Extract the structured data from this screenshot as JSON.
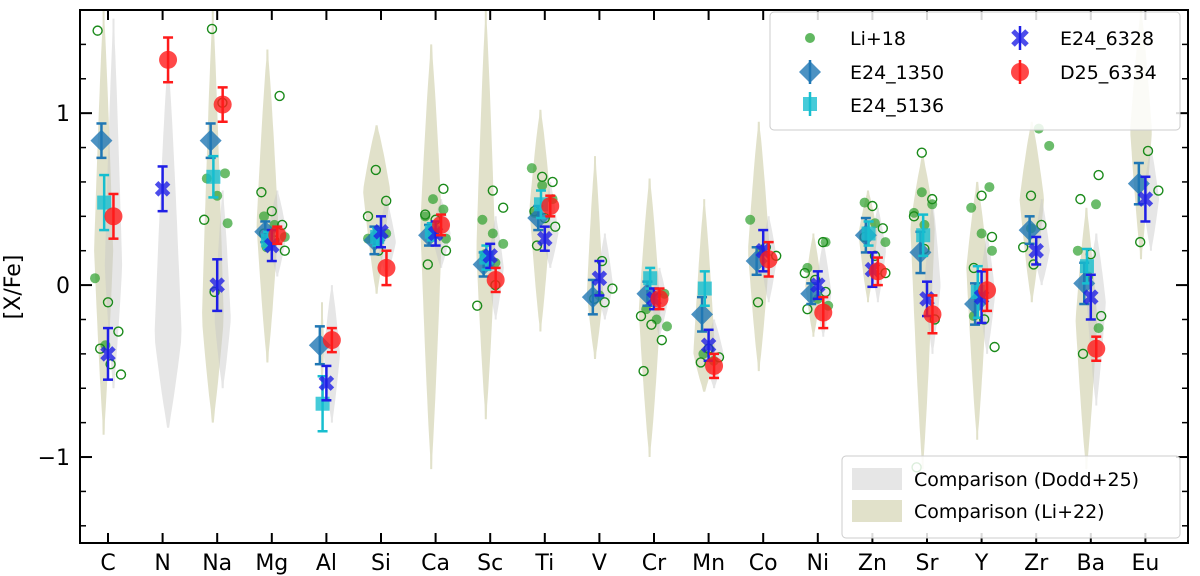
{
  "chart_data": {
    "type": "scatter",
    "ylabel": "[X/Fe]",
    "xlabel": "",
    "ylim": [
      -1.5,
      1.6
    ],
    "yticks": [
      -1,
      0,
      1
    ],
    "ytick_labels": [
      "−1",
      "0",
      "1"
    ],
    "categories": [
      "C",
      "N",
      "Na",
      "Mg",
      "Al",
      "Si",
      "Ca",
      "Sc",
      "Ti",
      "V",
      "Cr",
      "Mn",
      "Co",
      "Ni",
      "Zn",
      "Sr",
      "Y",
      "Zr",
      "Ba",
      "Eu"
    ],
    "legend": {
      "placement": "top-right",
      "entries": [
        "Li+18",
        "E24_1350",
        "E24_5136",
        "E24_6328",
        "D25_6334"
      ]
    },
    "comparison_legend": {
      "placement": "bottom-right",
      "entries": [
        "Comparison (Dodd+25)",
        "Comparison (Li+22)"
      ]
    },
    "colors": {
      "li18": "#2ca02c",
      "e24_1350": "#1f77b4",
      "e24_5136": "#17becf",
      "e24_6328": "#1f1fe6",
      "d25_6334": "#ff1a1a",
      "dodd": "#c8c8c8",
      "li22": "#bcbd8a"
    },
    "violins_dodd": [
      {
        "el": "C",
        "y": [
          -0.6,
          1.55
        ],
        "c": 0.1,
        "w": 0.32
      },
      {
        "el": "N",
        "y": [
          -0.83,
          1.3
        ],
        "c": -0.3,
        "w": 0.5
      },
      {
        "el": "Na",
        "y": [
          -0.6,
          0.55
        ],
        "c": -0.2,
        "w": 0.3
      },
      {
        "el": "Mg",
        "y": [
          0.05,
          0.55
        ],
        "c": 0.3,
        "w": 0.35
      },
      {
        "el": "Al",
        "y": [
          -0.8,
          0.0
        ],
        "c": -0.4,
        "w": 0.3
      },
      {
        "el": "Si",
        "y": [
          0.05,
          0.5
        ],
        "c": 0.25,
        "w": 0.35
      },
      {
        "el": "Ca",
        "y": [
          0.1,
          0.5
        ],
        "c": 0.3,
        "w": 0.35
      },
      {
        "el": "Sc",
        "y": [
          -0.2,
          0.4
        ],
        "c": 0.1,
        "w": 0.3
      },
      {
        "el": "Ti",
        "y": [
          0.1,
          0.6
        ],
        "c": 0.3,
        "w": 0.3
      },
      {
        "el": "V",
        "y": [
          -0.2,
          0.3
        ],
        "c": 0.0,
        "w": 0.3
      },
      {
        "el": "Cr",
        "y": [
          -0.3,
          0.1
        ],
        "c": -0.1,
        "w": 0.3
      },
      {
        "el": "Mn",
        "y": [
          -0.6,
          -0.2
        ],
        "c": -0.4,
        "w": 0.35
      },
      {
        "el": "Co",
        "y": [
          -0.1,
          0.4
        ],
        "c": 0.15,
        "w": 0.3
      },
      {
        "el": "Ni",
        "y": [
          -0.3,
          0.25
        ],
        "c": -0.05,
        "w": 0.3
      },
      {
        "el": "Zn",
        "y": [
          -0.1,
          0.45
        ],
        "c": 0.2,
        "w": 0.3
      },
      {
        "el": "Sr",
        "y": [
          -0.4,
          0.5
        ],
        "c": 0.0,
        "w": 0.3
      },
      {
        "el": "Y",
        "y": [
          -0.4,
          0.3
        ],
        "c": -0.05,
        "w": 0.3
      },
      {
        "el": "Zr",
        "y": [
          0.0,
          0.5
        ],
        "c": 0.2,
        "w": 0.3
      },
      {
        "el": "Ba",
        "y": [
          -0.7,
          0.3
        ],
        "c": -0.1,
        "w": 0.35
      },
      {
        "el": "Eu",
        "y": [
          0.2,
          0.8
        ],
        "c": 0.5,
        "w": 0.3
      }
    ],
    "violins_li22": [
      {
        "el": "C",
        "y": [
          -0.87,
          1.6
        ],
        "c": 0.2,
        "w": 0.35
      },
      {
        "el": "N",
        "y": [
          0,
          0
        ],
        "c": 0,
        "w": 0
      },
      {
        "el": "Na",
        "y": [
          -0.8,
          1.6
        ],
        "c": -0.2,
        "w": 0.4
      },
      {
        "el": "Mg",
        "y": [
          -0.45,
          1.37
        ],
        "c": 0.35,
        "w": 0.4
      },
      {
        "el": "Al",
        "y": [
          -0.65,
          -0.1
        ],
        "c": -0.35,
        "w": 0.08
      },
      {
        "el": "Si",
        "y": [
          -0.05,
          0.93
        ],
        "c": 0.55,
        "w": 0.5
      },
      {
        "el": "Ca",
        "y": [
          -1.07,
          1.4
        ],
        "c": 0.35,
        "w": 0.4
      },
      {
        "el": "Sc",
        "y": [
          -0.78,
          1.6
        ],
        "c": 0.2,
        "w": 0.35
      },
      {
        "el": "Ti",
        "y": [
          -0.27,
          1.02
        ],
        "c": 0.45,
        "w": 0.4
      },
      {
        "el": "V",
        "y": [
          -0.43,
          0.75
        ],
        "c": -0.05,
        "w": 0.3
      },
      {
        "el": "Cr",
        "y": [
          -1.0,
          0.62
        ],
        "c": -0.15,
        "w": 0.4
      },
      {
        "el": "Mn",
        "y": [
          -0.62,
          0.5
        ],
        "c": -0.4,
        "w": 0.4
      },
      {
        "el": "Co",
        "y": [
          -0.5,
          0.95
        ],
        "c": 0.2,
        "w": 0.4
      },
      {
        "el": "Ni",
        "y": [
          -0.3,
          0.3
        ],
        "c": 0.0,
        "w": 0.3
      },
      {
        "el": "Zn",
        "y": [
          -0.1,
          0.55
        ],
        "c": 0.3,
        "w": 0.35
      },
      {
        "el": "Sr",
        "y": [
          -1.07,
          0.75
        ],
        "c": 0.35,
        "w": 0.45
      },
      {
        "el": "Y",
        "y": [
          -0.9,
          0.6
        ],
        "c": 0.1,
        "w": 0.4
      },
      {
        "el": "Zr",
        "y": [
          -0.1,
          0.95
        ],
        "c": 0.5,
        "w": 0.45
      },
      {
        "el": "Ba",
        "y": [
          -1.07,
          0.45
        ],
        "c": -0.2,
        "w": 0.4
      },
      {
        "el": "Eu",
        "y": [
          0.15,
          1.6
        ],
        "c": 0.9,
        "w": 0.4
      }
    ],
    "li18_filled": [
      [
        "C",
        0.04
      ],
      [
        "C",
        -0.35
      ],
      [
        "Na",
        0.65
      ],
      [
        "Na",
        0.62
      ],
      [
        "Na",
        0.52
      ],
      [
        "Na",
        0.36
      ],
      [
        "Mg",
        0.4
      ],
      [
        "Mg",
        0.35
      ],
      [
        "Mg",
        0.28
      ],
      [
        "Mg",
        0.22
      ],
      [
        "Si",
        0.3
      ],
      [
        "Si",
        0.27
      ],
      [
        "Ca",
        0.5
      ],
      [
        "Ca",
        0.44
      ],
      [
        "Ca",
        0.4
      ],
      [
        "Ca",
        0.32
      ],
      [
        "Ca",
        0.27
      ],
      [
        "Sc",
        0.38
      ],
      [
        "Sc",
        0.3
      ],
      [
        "Sc",
        0.24
      ],
      [
        "Sc",
        0.18
      ],
      [
        "Sc",
        0.13
      ],
      [
        "Ti",
        0.68
      ],
      [
        "Ti",
        0.58
      ],
      [
        "Ti",
        0.5
      ],
      [
        "Ti",
        0.42
      ],
      [
        "V",
        -0.06
      ],
      [
        "Cr",
        -0.05
      ],
      [
        "Cr",
        -0.14
      ],
      [
        "Cr",
        -0.2
      ],
      [
        "Cr",
        -0.24
      ],
      [
        "Mn",
        -0.4
      ],
      [
        "Mn",
        -0.44
      ],
      [
        "Co",
        0.38
      ],
      [
        "Co",
        0.2
      ],
      [
        "Ni",
        0.25
      ],
      [
        "Ni",
        0.1
      ],
      [
        "Ni",
        -0.08
      ],
      [
        "Ni",
        -0.12
      ],
      [
        "Zn",
        0.48
      ],
      [
        "Zn",
        0.36
      ],
      [
        "Zn",
        0.25
      ],
      [
        "Sr",
        0.54
      ],
      [
        "Sr",
        0.47
      ],
      [
        "Sr",
        0.42
      ],
      [
        "Sr",
        0.35
      ],
      [
        "Y",
        0.57
      ],
      [
        "Y",
        0.45
      ],
      [
        "Y",
        0.3
      ],
      [
        "Y",
        0.2
      ],
      [
        "Y",
        -0.18
      ],
      [
        "Zr",
        0.91
      ],
      [
        "Zr",
        0.81
      ],
      [
        "Zr",
        0.33
      ],
      [
        "Ba",
        0.47
      ],
      [
        "Ba",
        0.2
      ],
      [
        "Ba",
        0.05
      ],
      [
        "Ba",
        -0.25
      ]
    ],
    "li18_open": [
      [
        "C",
        1.48
      ],
      [
        "C",
        -0.1
      ],
      [
        "C",
        -0.27
      ],
      [
        "C",
        -0.37
      ],
      [
        "C",
        -0.46
      ],
      [
        "C",
        -0.52
      ],
      [
        "Na",
        1.49
      ],
      [
        "Na",
        1.06
      ],
      [
        "Na",
        0.38
      ],
      [
        "Na",
        -0.04
      ],
      [
        "Mg",
        1.1
      ],
      [
        "Mg",
        0.54
      ],
      [
        "Mg",
        0.43
      ],
      [
        "Mg",
        0.35
      ],
      [
        "Mg",
        0.3
      ],
      [
        "Mg",
        0.26
      ],
      [
        "Mg",
        0.2
      ],
      [
        "Si",
        0.67
      ],
      [
        "Si",
        0.49
      ],
      [
        "Si",
        0.4
      ],
      [
        "Si",
        0.2
      ],
      [
        "Ca",
        0.56
      ],
      [
        "Ca",
        0.41
      ],
      [
        "Ca",
        0.38
      ],
      [
        "Ca",
        0.2
      ],
      [
        "Ca",
        0.12
      ],
      [
        "Sc",
        0.55
      ],
      [
        "Sc",
        0.45
      ],
      [
        "Sc",
        0.16
      ],
      [
        "Sc",
        0.0
      ],
      [
        "Sc",
        -0.12
      ],
      [
        "Ti",
        0.63
      ],
      [
        "Ti",
        0.6
      ],
      [
        "Ti",
        0.43
      ],
      [
        "Ti",
        0.39
      ],
      [
        "Ti",
        0.34
      ],
      [
        "Ti",
        0.23
      ],
      [
        "V",
        0.14
      ],
      [
        "V",
        -0.02
      ],
      [
        "V",
        -0.08
      ],
      [
        "V",
        -0.1
      ],
      [
        "Cr",
        -0.18
      ],
      [
        "Cr",
        -0.23
      ],
      [
        "Cr",
        -0.32
      ],
      [
        "Cr",
        -0.5
      ],
      [
        "Mn",
        -0.37
      ],
      [
        "Mn",
        -0.42
      ],
      [
        "Mn",
        -0.45
      ],
      [
        "Co",
        0.22
      ],
      [
        "Co",
        0.17
      ],
      [
        "Co",
        -0.1
      ],
      [
        "Ni",
        0.25
      ],
      [
        "Ni",
        0.07
      ],
      [
        "Ni",
        0.03
      ],
      [
        "Ni",
        -0.04
      ],
      [
        "Ni",
        -0.14
      ],
      [
        "Zn",
        0.46
      ],
      [
        "Zn",
        0.33
      ],
      [
        "Zn",
        0.28
      ],
      [
        "Zn",
        0.17
      ],
      [
        "Zn",
        0.07
      ],
      [
        "Sr",
        0.77
      ],
      [
        "Sr",
        0.5
      ],
      [
        "Sr",
        0.4
      ],
      [
        "Sr",
        0.21
      ],
      [
        "Sr",
        -0.2
      ],
      [
        "Sr",
        -1.06
      ],
      [
        "Y",
        0.52
      ],
      [
        "Y",
        0.28
      ],
      [
        "Y",
        0.1
      ],
      [
        "Y",
        -0.2
      ],
      [
        "Y",
        -0.36
      ],
      [
        "Zr",
        0.52
      ],
      [
        "Zr",
        0.35
      ],
      [
        "Zr",
        0.22
      ],
      [
        "Zr",
        0.12
      ],
      [
        "Ba",
        0.64
      ],
      [
        "Ba",
        0.5
      ],
      [
        "Ba",
        0.18
      ],
      [
        "Ba",
        -0.18
      ],
      [
        "Ba",
        -0.4
      ],
      [
        "Eu",
        0.78
      ],
      [
        "Eu",
        0.55
      ],
      [
        "Eu",
        0.25
      ]
    ],
    "series": [
      {
        "name": "E24_1350",
        "marker": "diamond",
        "dx": -0.12,
        "points": [
          [
            "C",
            0.84,
            0.1
          ],
          [
            "N",
            null,
            null
          ],
          [
            "Na",
            0.84,
            0.1
          ],
          [
            "Mg",
            0.31,
            0.06
          ],
          [
            "Al",
            -0.35,
            0.11
          ],
          [
            "Si",
            0.26,
            0.08
          ],
          [
            "Ca",
            0.29,
            0.06
          ],
          [
            "Sc",
            0.12,
            0.07
          ],
          [
            "Ti",
            0.39,
            0.07
          ],
          [
            "V",
            -0.07,
            0.1
          ],
          [
            "Cr",
            -0.05,
            0.07
          ],
          [
            "Mn",
            -0.17,
            0.1
          ],
          [
            "Co",
            0.14,
            0.08
          ],
          [
            "Ni",
            -0.05,
            0.06
          ],
          [
            "Zn",
            0.29,
            0.1
          ],
          [
            "Sr",
            0.19,
            0.12
          ],
          [
            "Y",
            -0.11,
            0.12
          ],
          [
            "Zr",
            0.32,
            0.08
          ],
          [
            "Ba",
            0.01,
            0.12
          ],
          [
            "Eu",
            0.59,
            0.12
          ]
        ]
      },
      {
        "name": "E24_5136",
        "marker": "square",
        "dx": -0.07,
        "points": [
          [
            "C",
            0.48,
            0.16
          ],
          [
            "N",
            null,
            null
          ],
          [
            "Na",
            0.63,
            0.12
          ],
          [
            "Mg",
            0.26,
            0.05
          ],
          [
            "Al",
            -0.69,
            0.16
          ],
          [
            "Si",
            0.28,
            0.05
          ],
          [
            "Ca",
            0.31,
            0.05
          ],
          [
            "Sc",
            0.16,
            0.07
          ],
          [
            "Ti",
            0.47,
            0.08
          ],
          [
            "V",
            null,
            null
          ],
          [
            "Cr",
            0.04,
            0.06
          ],
          [
            "Mn",
            -0.02,
            0.1
          ],
          [
            "Co",
            null,
            null
          ],
          [
            "Ni",
            null,
            null
          ],
          [
            "Zn",
            0.3,
            0.07
          ],
          [
            "Sr",
            0.29,
            0.12
          ],
          [
            "Y",
            -0.04,
            0.15
          ],
          [
            "Zr",
            null,
            null
          ],
          [
            "Ba",
            0.11,
            0.1
          ],
          [
            "Eu",
            null,
            null
          ]
        ]
      },
      {
        "name": "E24_6328",
        "marker": "x",
        "dx": 0.0,
        "points": [
          [
            "C",
            -0.4,
            0.15
          ],
          [
            "N",
            0.56,
            0.13
          ],
          [
            "Na",
            0.0,
            0.15
          ],
          [
            "Mg",
            0.23,
            0.09
          ],
          [
            "Al",
            -0.57,
            0.1
          ],
          [
            "Si",
            0.31,
            0.09
          ],
          [
            "Ca",
            0.3,
            0.07
          ],
          [
            "Sc",
            0.17,
            0.07
          ],
          [
            "Ti",
            0.27,
            0.07
          ],
          [
            "V",
            0.04,
            0.1
          ],
          [
            "Cr",
            -0.08,
            0.06
          ],
          [
            "Mn",
            -0.35,
            0.09
          ],
          [
            "Co",
            0.2,
            0.12
          ],
          [
            "Ni",
            0.0,
            0.08
          ],
          [
            "Zn",
            0.09,
            0.1
          ],
          [
            "Sr",
            -0.08,
            0.1
          ],
          [
            "Y",
            -0.07,
            0.15
          ],
          [
            "Zr",
            0.2,
            0.08
          ],
          [
            "Ba",
            -0.07,
            0.13
          ],
          [
            "Eu",
            0.5,
            0.13
          ]
        ]
      },
      {
        "name": "D25_6334",
        "marker": "circle",
        "dx": 0.1,
        "points": [
          [
            "C",
            0.4,
            0.13
          ],
          [
            "N",
            1.31,
            0.13
          ],
          [
            "Na",
            1.05,
            0.1
          ],
          [
            "Mg",
            0.29,
            0.05
          ],
          [
            "Al",
            -0.32,
            0.07
          ],
          [
            "Si",
            0.1,
            0.1
          ],
          [
            "Ca",
            0.35,
            0.06
          ],
          [
            "Sc",
            0.03,
            0.07
          ],
          [
            "Ti",
            0.46,
            0.06
          ],
          [
            "V",
            null,
            null
          ],
          [
            "Cr",
            -0.08,
            0.06
          ],
          [
            "Mn",
            -0.47,
            0.07
          ],
          [
            "Co",
            0.15,
            0.1
          ],
          [
            "Ni",
            -0.16,
            0.09
          ],
          [
            "Zn",
            0.08,
            0.08
          ],
          [
            "Sr",
            -0.17,
            0.11
          ],
          [
            "Y",
            -0.03,
            0.12
          ],
          [
            "Zr",
            null,
            null
          ],
          [
            "Ba",
            -0.37,
            0.07
          ],
          [
            "Eu",
            null,
            null
          ]
        ]
      }
    ]
  }
}
